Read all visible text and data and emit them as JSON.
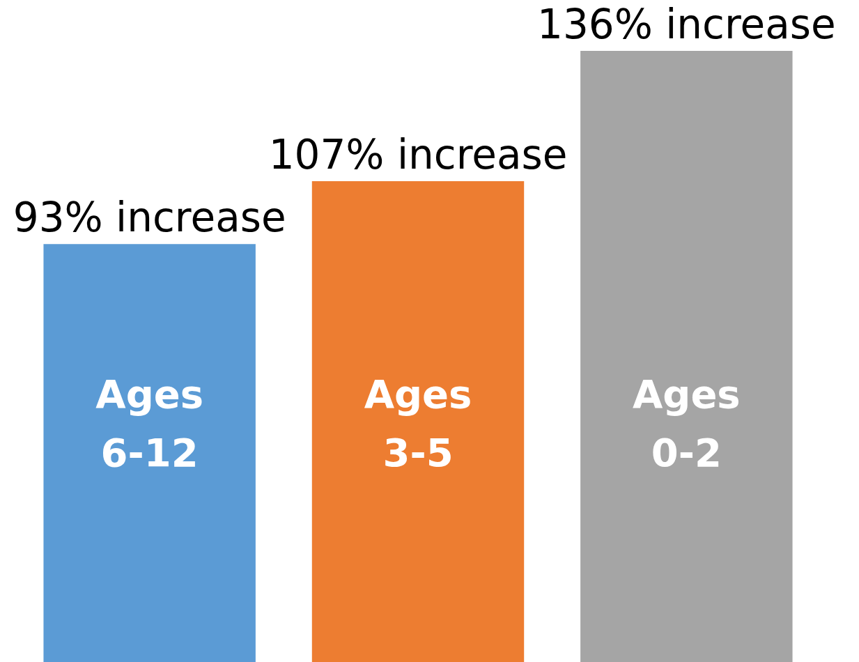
{
  "chart_data": {
    "type": "bar",
    "categories": [
      "Ages 6-12",
      "Ages 3-5",
      "Ages 0-2"
    ],
    "values": [
      93,
      107,
      136
    ],
    "colors": [
      "#5b9bd5",
      "#ed7d31",
      "#a5a5a5"
    ],
    "value_labels": [
      "93% increase",
      "107% increase",
      "136% increase"
    ]
  }
}
